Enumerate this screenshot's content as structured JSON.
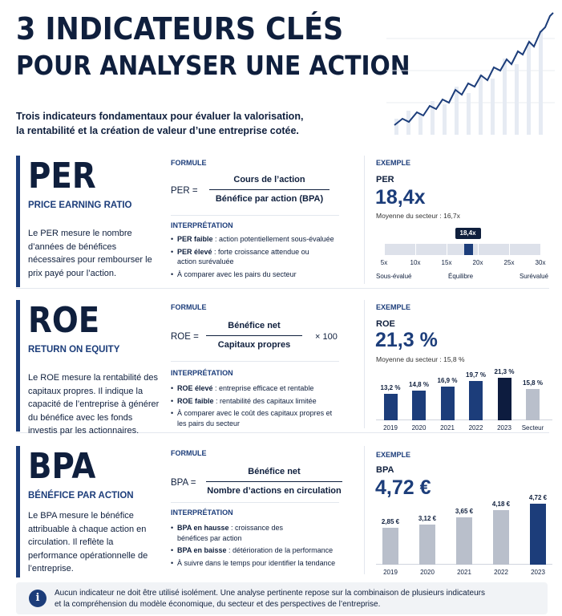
{
  "header": {
    "title_line1": "3 INDICATEURS CLÉS",
    "title_line2": "POUR ANALYSER UNE ACTION",
    "subtitle_line1": "Trois indicateurs fondamentaux pour évaluer la valorisation,",
    "subtitle_line2": "la rentabilité et la création de valeur d’une entreprise cotée."
  },
  "labels": {
    "formule": "FORMULE",
    "interpretation": "INTERPRÉTATION",
    "exemple": "EXEMPLE"
  },
  "colors": {
    "navy": "#1c3d7a",
    "dark": "#0f1f3d",
    "gray_bar": "#b9bfcb",
    "highlight_bar": "#0d1c3f"
  },
  "per": {
    "code": "PER",
    "full_name": "PRICE EARNING RATIO",
    "description": "Le PER mesure le nombre d’années de bénéfices nécessaires pour rembourser le prix payé pour l’action.",
    "formula_left": "PER =",
    "formula_numerator": "Cours de l’action",
    "formula_denominator": "Bénéfice par action (BPA)",
    "bullets": [
      {
        "bold": "PER faible",
        "text": " : action potentiellement sous-évaluée"
      },
      {
        "bold": "PER élevé",
        "text": " : forte croissance attendue ou action surévaluée"
      },
      {
        "bold": "",
        "text": "À comparer avec les pairs du secteur"
      }
    ],
    "example_code": "PER",
    "example_value": "18,4x",
    "sector_avg": "Moyenne du secteur : 16,7x",
    "gauge": {
      "marker_label": "18,4x",
      "marker_value": 18.4,
      "min": 5,
      "max": 30,
      "ticks": [
        "5x",
        "10x",
        "15x",
        "20x",
        "25x",
        "30x"
      ],
      "tick_values": [
        5,
        10,
        15,
        20,
        25,
        30
      ],
      "zones": [
        "Sous-évalué",
        "Équilibre",
        "Surévalué"
      ]
    }
  },
  "roe": {
    "code": "ROE",
    "full_name": "RETURN ON EQUITY",
    "description": "Le ROE mesure la rentabilité des capitaux propres. Il indique la capacité de l’entreprise à générer du bénéfice avec les fonds investis par les actionnaires.",
    "formula_left": "ROE =",
    "formula_numerator": "Bénéfice net",
    "formula_denominator": "Capitaux propres",
    "formula_times": "× 100",
    "bullets": [
      {
        "bold": "ROE élevé",
        "text": " : entreprise efficace et rentable"
      },
      {
        "bold": "ROE faible",
        "text": " : rentabilité des capitaux limitée"
      },
      {
        "bold": "",
        "text": "À comparer avec le coût des capitaux propres et les pairs du secteur"
      }
    ],
    "example_code": "ROE",
    "example_value": "21,3 %",
    "sector_avg": "Moyenne du secteur : 15,8 %"
  },
  "bpa": {
    "code": "BPA",
    "full_name": "BÉNÉFICE PAR ACTION",
    "description": "Le BPA mesure le bénéfice attribuable à chaque action en circulation. Il reflète la performance opérationnelle de l’entreprise.",
    "formula_left": "BPA =",
    "formula_numerator": "Bénéfice net",
    "formula_denominator": "Nombre d’actions en circulation",
    "bullets": [
      {
        "bold": "BPA en hausse",
        "text": " : croissance des bénéfices par action"
      },
      {
        "bold": "BPA en baisse",
        "text": " : détérioration de la performance"
      },
      {
        "bold": "",
        "text": "À suivre dans le temps pour identifier la tendance"
      }
    ],
    "example_code": "BPA",
    "example_value": "4,72 €"
  },
  "chart_data": [
    {
      "type": "bar",
      "categories": [
        "2019",
        "2020",
        "2021",
        "2022",
        "2023",
        "Secteur"
      ],
      "values": [
        13.2,
        14.8,
        16.9,
        19.7,
        21.3,
        15.8
      ],
      "value_labels": [
        "13,2 %",
        "14,8 %",
        "16,9 %",
        "19,7 %",
        "21,3 %",
        "15,8 %"
      ],
      "bar_colors": [
        "#1c3d7a",
        "#1c3d7a",
        "#1c3d7a",
        "#1c3d7a",
        "#0d1c3f",
        "#b9bfcb"
      ],
      "ylim": [
        0,
        24
      ],
      "grid": false
    },
    {
      "type": "bar",
      "categories": [
        "2019",
        "2020",
        "2021",
        "2022",
        "2023"
      ],
      "values": [
        2.85,
        3.12,
        3.65,
        4.18,
        4.72
      ],
      "value_labels": [
        "2,85 €",
        "3,12 €",
        "3,65 €",
        "4,18 €",
        "4,72 €"
      ],
      "bar_colors": [
        "#b9bfcb",
        "#b9bfcb",
        "#b9bfcb",
        "#b9bfcb",
        "#1c3d7a"
      ],
      "ylim": [
        0,
        5.2
      ],
      "grid": false
    }
  ],
  "footer": {
    "text_line1": "Aucun indicateur ne doit être utilisé isolément. Une analyse pertinente repose sur la combinaison de plusieurs indicateurs",
    "text_line2": "et la compréhension du modèle économique, du secteur et des perspectives de l’entreprise.",
    "icon": "info-icon"
  }
}
